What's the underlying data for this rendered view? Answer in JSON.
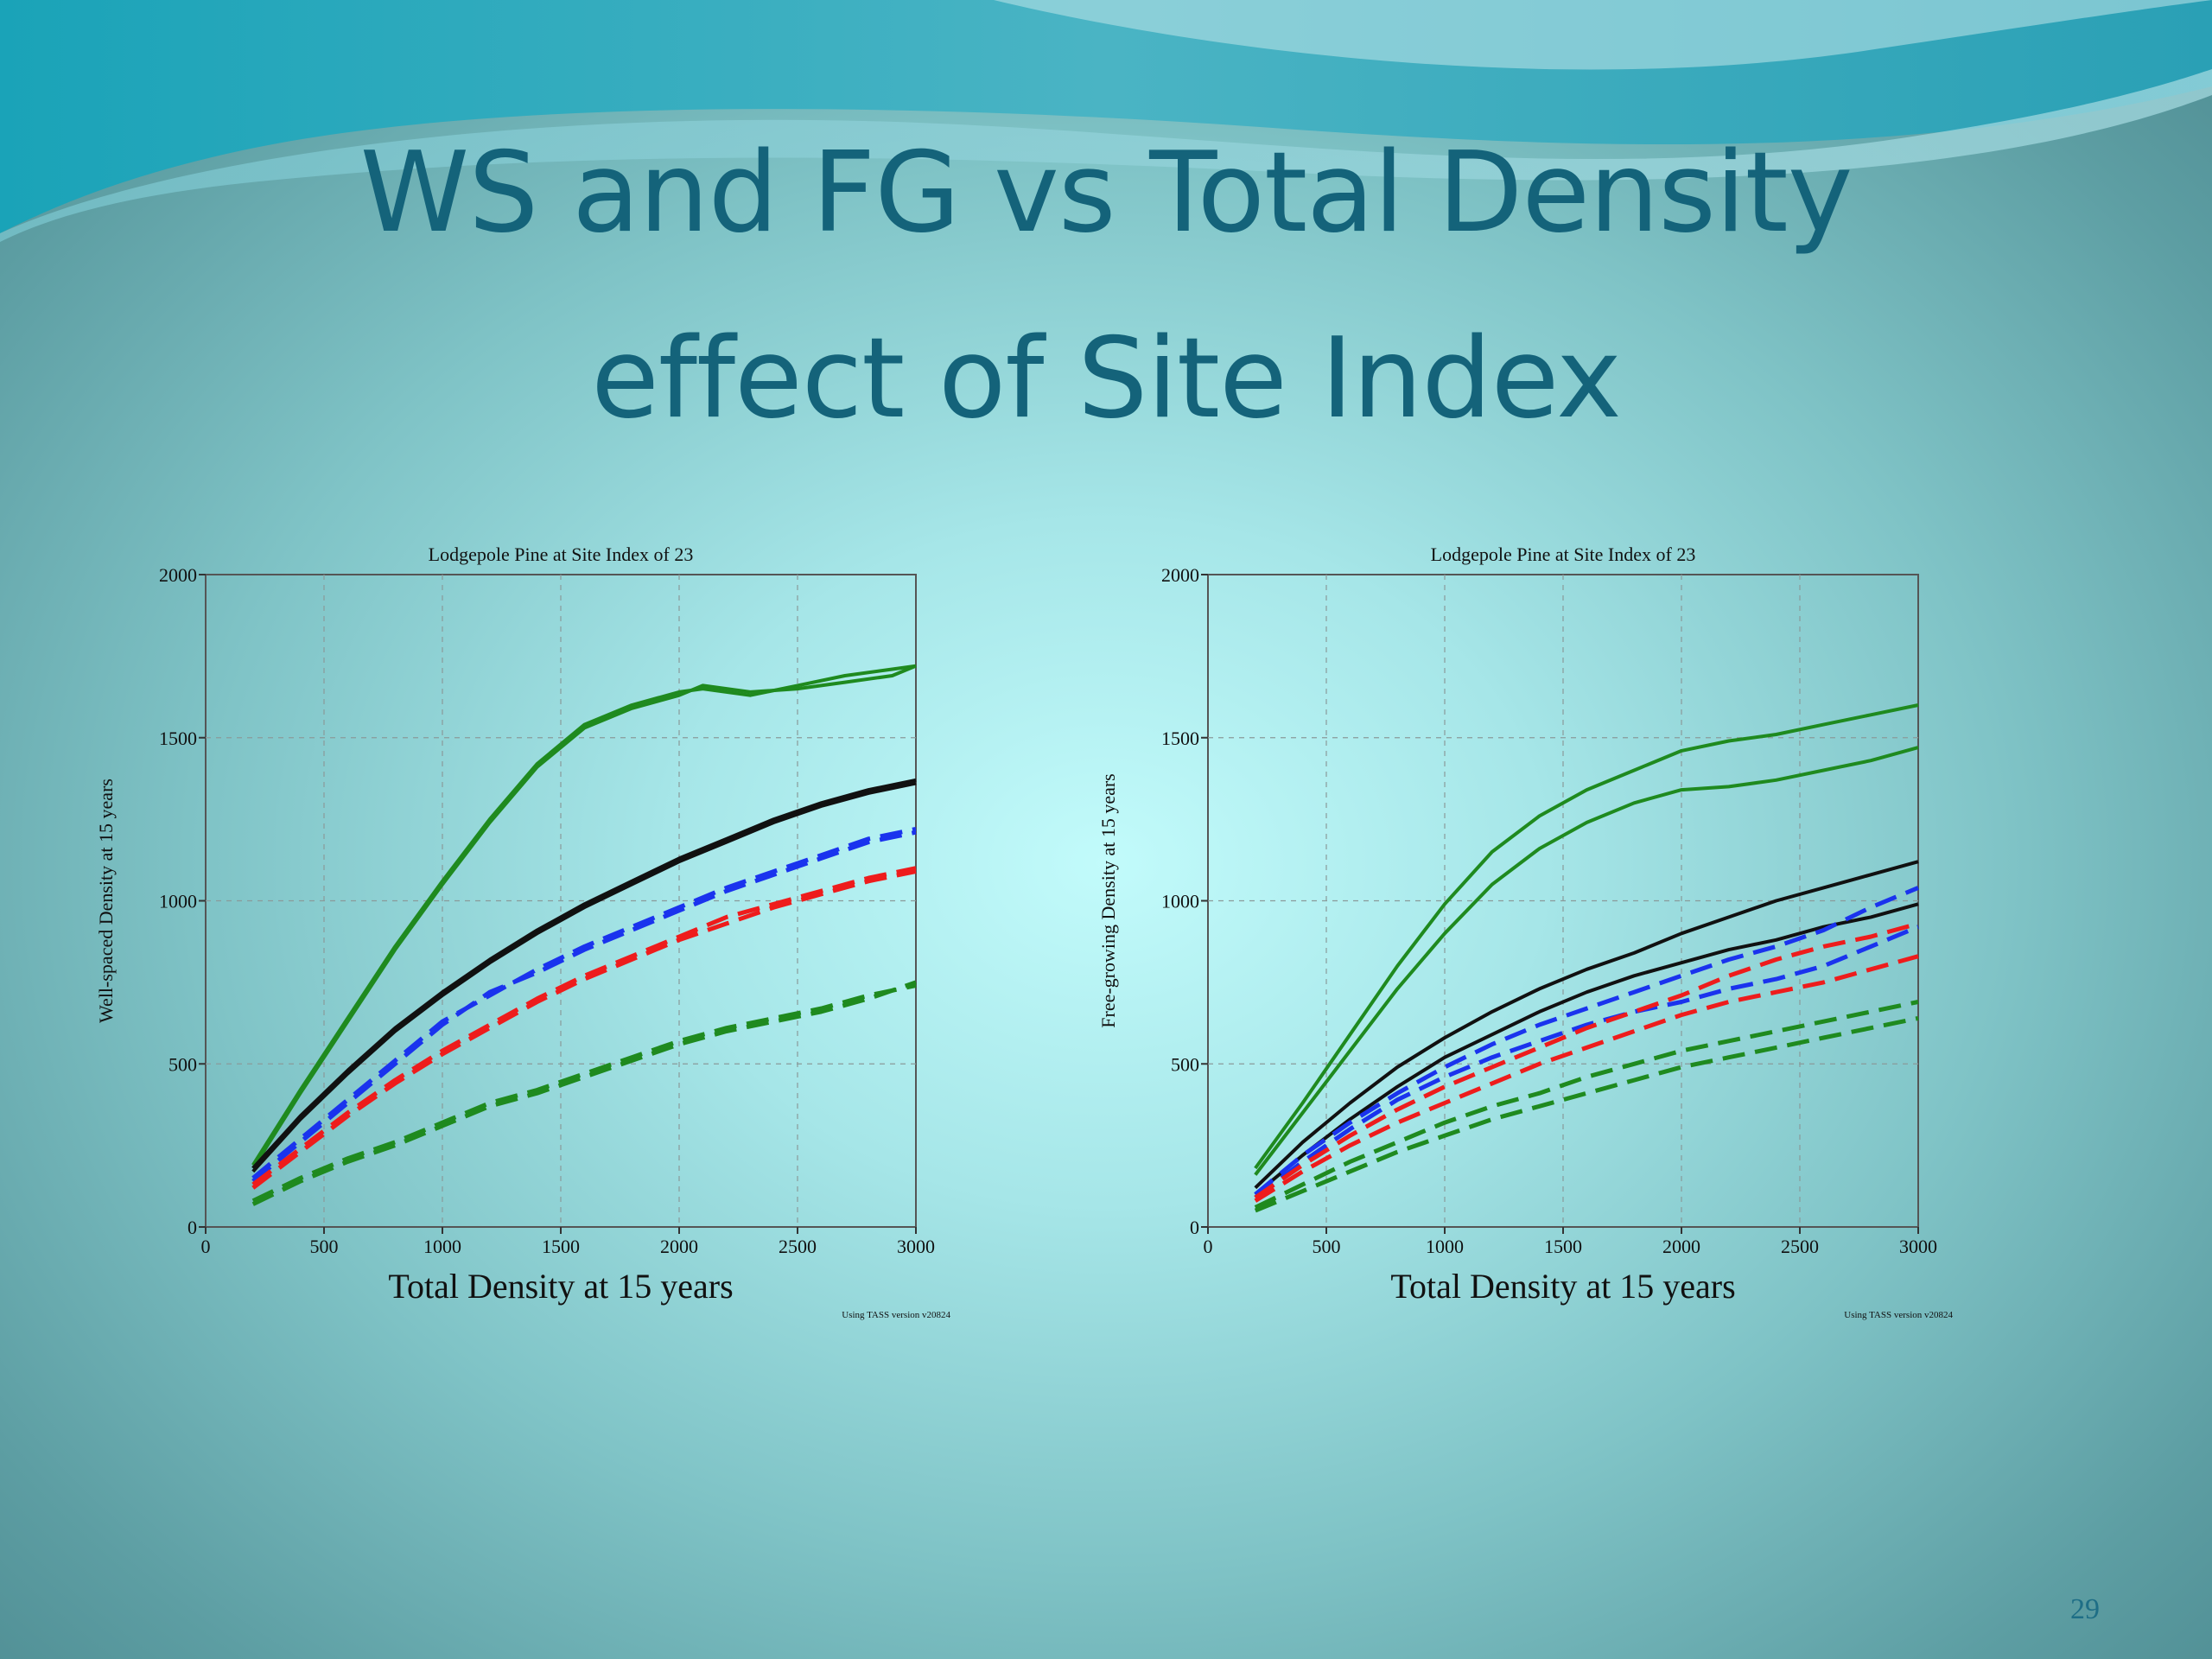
{
  "slide": {
    "title_line1": "WS and FG vs Total Density",
    "title_line2": "effect of Site Index",
    "page_number": "29"
  },
  "colors": {
    "title": "#14637a",
    "green": "#1f8a1f",
    "black": "#111111",
    "blue": "#1a33ee",
    "red": "#ee1c1c"
  },
  "chart_data": [
    {
      "type": "line",
      "title": "Lodgepole Pine at Site Index of 23",
      "xlabel": "Total Density at 15 years",
      "ylabel": "Well-spaced Density at 15 years",
      "footnote": "Using TASS version v20824",
      "xlim": [
        0,
        3000
      ],
      "ylim": [
        0,
        2000
      ],
      "xticks": [
        0,
        500,
        1000,
        1500,
        2000,
        2500,
        3000
      ],
      "yticks": [
        0,
        500,
        1000,
        1500,
        2000
      ],
      "grid": true,
      "series": [
        {
          "color": "green",
          "style": "solid",
          "x": [
            200,
            400,
            600,
            800,
            1000,
            1200,
            1400,
            1600,
            1800,
            2000,
            2100,
            2300,
            2500,
            2700,
            2900,
            3000
          ],
          "y": [
            190,
            420,
            640,
            860,
            1060,
            1250,
            1420,
            1540,
            1600,
            1640,
            1650,
            1630,
            1660,
            1690,
            1710,
            1720
          ]
        },
        {
          "color": "green",
          "style": "solid",
          "x": [
            200,
            400,
            600,
            800,
            1000,
            1200,
            1400,
            1600,
            1800,
            2000,
            2100,
            2300,
            2500,
            2700,
            2900,
            3000
          ],
          "y": [
            180,
            410,
            630,
            850,
            1050,
            1240,
            1410,
            1530,
            1590,
            1630,
            1660,
            1640,
            1650,
            1670,
            1690,
            1720
          ]
        },
        {
          "color": "black",
          "style": "solid",
          "x": [
            200,
            400,
            600,
            800,
            1000,
            1200,
            1400,
            1600,
            1800,
            2000,
            2200,
            2400,
            2600,
            2800,
            3000
          ],
          "y": [
            180,
            340,
            480,
            610,
            720,
            820,
            910,
            990,
            1060,
            1130,
            1190,
            1250,
            1300,
            1340,
            1370
          ]
        },
        {
          "color": "black",
          "style": "solid",
          "x": [
            200,
            400,
            600,
            800,
            1000,
            1200,
            1400,
            1600,
            1800,
            2000,
            2200,
            2400,
            2600,
            2800,
            3000
          ],
          "y": [
            170,
            330,
            470,
            600,
            710,
            810,
            900,
            980,
            1050,
            1120,
            1180,
            1240,
            1290,
            1330,
            1360
          ]
        },
        {
          "color": "blue",
          "style": "dashed",
          "x": [
            200,
            400,
            600,
            800,
            1000,
            1200,
            1400,
            1600,
            1800,
            2000,
            2200,
            2400,
            2600,
            2800,
            3000
          ],
          "y": [
            140,
            260,
            380,
            500,
            620,
            720,
            780,
            850,
            910,
            970,
            1030,
            1080,
            1130,
            1180,
            1210
          ]
        },
        {
          "color": "blue",
          "style": "dashed",
          "x": [
            200,
            400,
            600,
            800,
            1000,
            1200,
            1400,
            1600,
            1800,
            2000,
            2200,
            2400,
            2600,
            2800,
            3000
          ],
          "y": [
            150,
            270,
            390,
            510,
            630,
            710,
            790,
            860,
            920,
            980,
            1040,
            1090,
            1140,
            1190,
            1220
          ]
        },
        {
          "color": "red",
          "style": "dashed",
          "x": [
            200,
            400,
            600,
            800,
            1000,
            1200,
            1400,
            1600,
            1800,
            2000,
            2200,
            2400,
            2600,
            2800,
            3000
          ],
          "y": [
            120,
            230,
            340,
            440,
            530,
            610,
            690,
            760,
            820,
            880,
            930,
            980,
            1020,
            1060,
            1090
          ]
        },
        {
          "color": "red",
          "style": "dashed",
          "x": [
            200,
            400,
            600,
            800,
            1000,
            1200,
            1400,
            1600,
            1800,
            2000,
            2200,
            2400,
            2600,
            2800,
            3000
          ],
          "y": [
            130,
            240,
            350,
            450,
            540,
            620,
            700,
            770,
            830,
            890,
            950,
            990,
            1030,
            1070,
            1100
          ]
        },
        {
          "color": "green",
          "style": "dashed",
          "x": [
            200,
            400,
            600,
            800,
            1000,
            1200,
            1400,
            1600,
            1800,
            2000,
            2200,
            2400,
            2600,
            2800,
            3000
          ],
          "y": [
            80,
            150,
            210,
            260,
            320,
            380,
            420,
            470,
            520,
            570,
            610,
            640,
            670,
            710,
            740
          ]
        },
        {
          "color": "green",
          "style": "dashed",
          "x": [
            200,
            400,
            600,
            800,
            1000,
            1200,
            1400,
            1600,
            1800,
            2000,
            2200,
            2400,
            2600,
            2800,
            3000
          ],
          "y": [
            70,
            140,
            200,
            250,
            310,
            370,
            410,
            460,
            510,
            560,
            600,
            630,
            660,
            700,
            750
          ]
        }
      ]
    },
    {
      "type": "line",
      "title": "Lodgepole Pine at Site Index of 23",
      "xlabel": "Total Density at 15 years",
      "ylabel": "Free-growing Density at 15 years",
      "footnote": "Using TASS version v20824",
      "xlim": [
        0,
        3000
      ],
      "ylim": [
        0,
        2000
      ],
      "xticks": [
        0,
        500,
        1000,
        1500,
        2000,
        2500,
        3000
      ],
      "yticks": [
        0,
        500,
        1000,
        1500,
        2000
      ],
      "grid": true,
      "series": [
        {
          "color": "green",
          "style": "solid",
          "x": [
            200,
            400,
            600,
            800,
            1000,
            1200,
            1400,
            1600,
            1800,
            2000,
            2200,
            2400,
            2600,
            2800,
            3000
          ],
          "y": [
            180,
            380,
            590,
            800,
            990,
            1150,
            1260,
            1340,
            1400,
            1460,
            1490,
            1510,
            1540,
            1570,
            1600
          ]
        },
        {
          "color": "green",
          "style": "solid",
          "x": [
            200,
            400,
            600,
            800,
            1000,
            1200,
            1400,
            1600,
            1800,
            2000,
            2200,
            2400,
            2600,
            2800,
            3000
          ],
          "y": [
            160,
            350,
            540,
            730,
            900,
            1050,
            1160,
            1240,
            1300,
            1340,
            1350,
            1370,
            1400,
            1430,
            1470
          ]
        },
        {
          "color": "black",
          "style": "solid",
          "x": [
            200,
            400,
            600,
            800,
            1000,
            1200,
            1400,
            1600,
            1800,
            2000,
            2200,
            2400,
            2600,
            2800,
            3000
          ],
          "y": [
            120,
            260,
            380,
            490,
            580,
            660,
            730,
            790,
            840,
            900,
            950,
            1000,
            1040,
            1080,
            1120
          ]
        },
        {
          "color": "black",
          "style": "solid",
          "x": [
            200,
            400,
            600,
            800,
            1000,
            1200,
            1400,
            1600,
            1800,
            2000,
            2200,
            2400,
            2600,
            2800,
            3000
          ],
          "y": [
            100,
            220,
            330,
            430,
            520,
            590,
            660,
            720,
            770,
            810,
            850,
            880,
            920,
            950,
            990
          ]
        },
        {
          "color": "blue",
          "style": "dashed",
          "x": [
            200,
            400,
            600,
            800,
            1000,
            1200,
            1400,
            1600,
            1800,
            2000,
            2200,
            2400,
            2600,
            2800,
            3000
          ],
          "y": [
            100,
            220,
            320,
            410,
            490,
            560,
            620,
            670,
            720,
            770,
            820,
            860,
            910,
            980,
            1040
          ]
        },
        {
          "color": "blue",
          "style": "dashed",
          "x": [
            200,
            400,
            600,
            800,
            1000,
            1200,
            1400,
            1600,
            1800,
            2000,
            2200,
            2400,
            2600,
            2800,
            3000
          ],
          "y": [
            90,
            200,
            300,
            390,
            460,
            520,
            570,
            620,
            660,
            690,
            730,
            760,
            800,
            860,
            920
          ]
        },
        {
          "color": "red",
          "style": "dashed",
          "x": [
            200,
            400,
            600,
            800,
            1000,
            1200,
            1400,
            1600,
            1800,
            2000,
            2200,
            2400,
            2600,
            2800,
            3000
          ],
          "y": [
            90,
            190,
            280,
            360,
            430,
            490,
            550,
            610,
            660,
            710,
            770,
            820,
            860,
            890,
            930
          ]
        },
        {
          "color": "red",
          "style": "dashed",
          "x": [
            200,
            400,
            600,
            800,
            1000,
            1200,
            1400,
            1600,
            1800,
            2000,
            2200,
            2400,
            2600,
            2800,
            3000
          ],
          "y": [
            80,
            170,
            250,
            320,
            380,
            440,
            500,
            550,
            600,
            650,
            690,
            720,
            750,
            790,
            830
          ]
        },
        {
          "color": "green",
          "style": "dashed",
          "x": [
            200,
            400,
            600,
            800,
            1000,
            1200,
            1400,
            1600,
            1800,
            2000,
            2200,
            2400,
            2600,
            2800,
            3000
          ],
          "y": [
            60,
            130,
            200,
            260,
            320,
            370,
            410,
            460,
            500,
            540,
            570,
            600,
            630,
            660,
            690
          ]
        },
        {
          "color": "green",
          "style": "dashed",
          "x": [
            200,
            400,
            600,
            800,
            1000,
            1200,
            1400,
            1600,
            1800,
            2000,
            2200,
            2400,
            2600,
            2800,
            3000
          ],
          "y": [
            50,
            110,
            170,
            230,
            280,
            330,
            370,
            410,
            450,
            490,
            520,
            550,
            580,
            610,
            640
          ]
        }
      ]
    }
  ]
}
